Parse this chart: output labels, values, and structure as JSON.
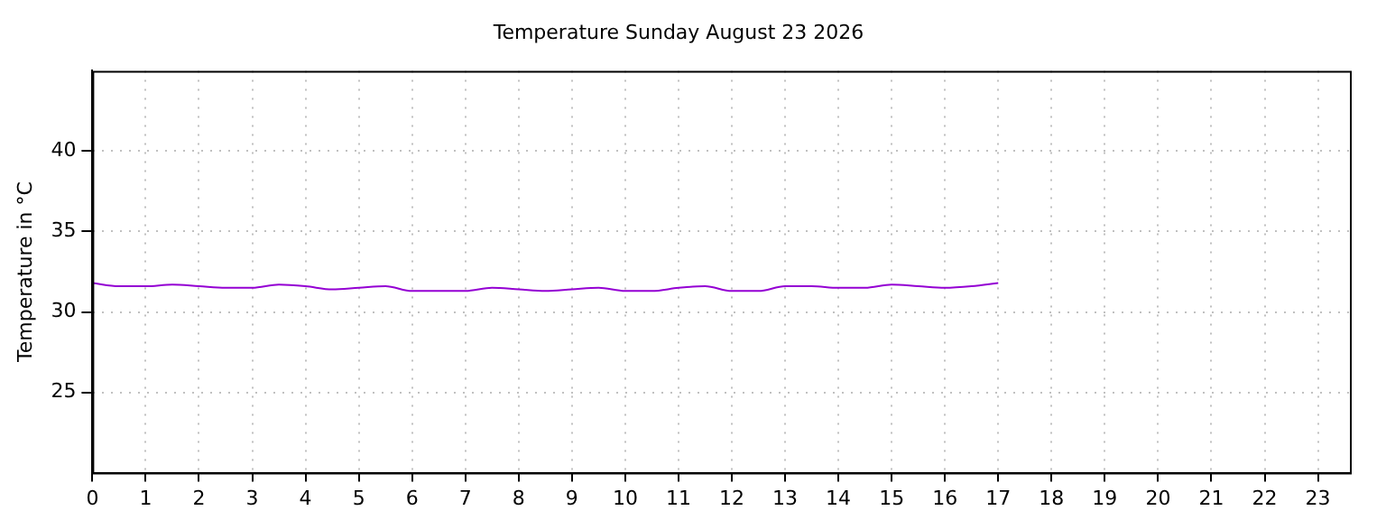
{
  "chart_data": {
    "type": "line",
    "title": "Temperature Sunday August 23 2026",
    "ylabel": "Temperature in °C",
    "x": [
      0,
      0.5,
      1,
      1.5,
      2,
      2.5,
      3,
      3.5,
      4,
      4.5,
      5,
      5.5,
      6,
      6.5,
      7,
      7.5,
      8,
      8.5,
      9,
      9.5,
      10,
      10.5,
      11,
      11.5,
      12,
      12.5,
      13,
      13.5,
      14,
      14.5,
      15,
      15.5,
      16,
      16.5,
      17
    ],
    "series": [
      {
        "color": "#9400d3",
        "values": [
          31.8,
          31.6,
          31.6,
          31.7,
          31.6,
          31.5,
          31.5,
          31.7,
          31.6,
          31.4,
          31.5,
          31.6,
          31.3,
          31.3,
          31.3,
          31.5,
          31.4,
          31.3,
          31.4,
          31.5,
          31.3,
          31.3,
          31.5,
          31.6,
          31.3,
          31.3,
          31.6,
          31.6,
          31.5,
          31.5,
          31.7,
          31.6,
          31.5,
          31.6,
          31.8
        ]
      }
    ],
    "xlim": [
      0,
      23.6
    ],
    "xticks": [
      0,
      1,
      2,
      3,
      4,
      5,
      6,
      7,
      8,
      9,
      10,
      11,
      12,
      13,
      14,
      15,
      16,
      17,
      18,
      19,
      20,
      21,
      22,
      23
    ],
    "ylim": [
      20,
      45
    ],
    "yticks": [
      25,
      30,
      35,
      40
    ],
    "grid": true,
    "legend": false,
    "marker": "none",
    "line_style": "solid"
  }
}
